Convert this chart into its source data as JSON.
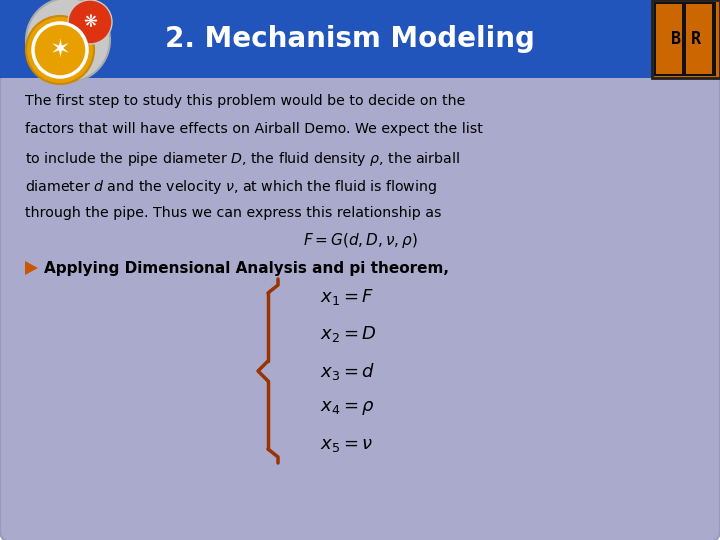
{
  "title": "2. Mechanism Modeling",
  "title_color": "#FFFFFF",
  "title_bg_color": "#2255BB",
  "title_fontsize": 20,
  "orange_accent_color": "#CC5500",
  "body_bg_color": "#B0B0CC",
  "slide_bg_color": "#FFFFFF",
  "para_lines": [
    "The first step to study this problem would be to decide on the",
    "factors that will have effects on Airball Demo. We expect the list",
    "to include the pipe diameter $D$, the fluid density $\\rho$, the airball",
    "diameter $d$ and the velocity $\\nu$, at which the fluid is flowing",
    "through the pipe. Thus we can express this relationship as"
  ],
  "formula_main": "$F = G(d,D,\\nu,\\rho)$",
  "bullet_text": "Applying Dimensional Analysis and pi theorem,",
  "equations": [
    "$x_1 = F$",
    "$x_2 = D$",
    "$x_3 = d$",
    "$x_4 = \\rho$",
    "$x_5 = \\nu$"
  ],
  "brace_color": "#993300",
  "text_color": "#000000",
  "content_bg": "#AAAACC",
  "content_border": "#9999BB"
}
